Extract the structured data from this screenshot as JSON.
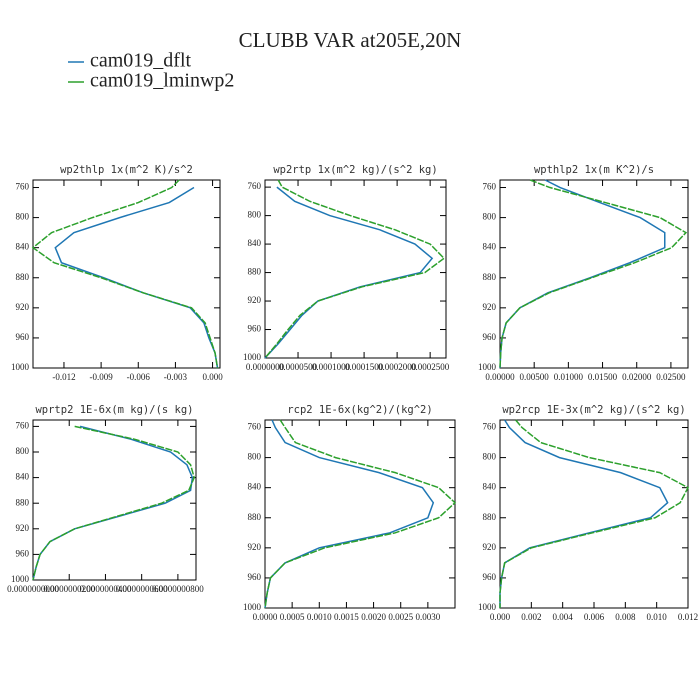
{
  "title": "CLUBB VAR at205E,20N",
  "legend": [
    {
      "name": "cam019_dflt",
      "color": "#1f77b4"
    },
    {
      "name": "cam019_lminwp2",
      "color": "#2ca02c"
    }
  ],
  "chart_data": [
    {
      "type": "line",
      "title": "wp2thlp  1x(m^2 K)/s^2",
      "y": [
        750,
        760,
        780,
        800,
        820,
        840,
        860,
        880,
        900,
        920,
        940,
        960,
        980,
        1000
      ],
      "ylim": [
        1000,
        750
      ],
      "yticks": [
        760,
        800,
        840,
        880,
        920,
        960,
        1000
      ],
      "xlim": [
        -0.0145,
        0.0006
      ],
      "xticks": [
        -0.012,
        -0.009,
        -0.006,
        -0.003,
        {
          "value": 0,
          "label": "0.000"
        }
      ],
      "series": [
        {
          "values": [
            null,
            -0.0015,
            -0.0035,
            -0.0075,
            -0.0112,
            -0.0127,
            -0.0122,
            -0.0088,
            -0.0056,
            -0.0018,
            -0.0007,
            -0.0003,
            0.0002,
            0.0004
          ]
        },
        {
          "values": [
            -0.0027,
            -0.0033,
            -0.006,
            -0.0097,
            -0.013,
            -0.0145,
            -0.0128,
            -0.009,
            -0.0056,
            -0.0017,
            -0.0006,
            -0.0002,
            0.0002,
            0.0004
          ]
        }
      ]
    },
    {
      "type": "line",
      "title": "wp2rtp  1x(m^2 kg)/(s^2 kg)",
      "y": [
        750,
        760,
        780,
        800,
        820,
        840,
        860,
        880,
        900,
        920,
        940,
        960,
        980,
        1000
      ],
      "ylim": [
        1000,
        750
      ],
      "yticks": [
        760,
        800,
        840,
        880,
        920,
        960,
        1000
      ],
      "xlim": [
        0,
        0.000274
      ],
      "xticks": [
        {
          "value": 0,
          "label": "0.0000000"
        },
        {
          "value": 5e-05,
          "label": "0.0000500"
        },
        {
          "value": 0.0001,
          "label": "0.0001000"
        },
        {
          "value": 0.00015,
          "label": "0.0001500"
        },
        {
          "value": 0.0002,
          "label": "0.0002000"
        },
        {
          "value": 0.00025,
          "label": "0.0002500"
        }
      ],
      "series": [
        {
          "values": [
            null,
            1.8e-05,
            4.5e-05,
            9.8e-05,
            0.000174,
            0.000227,
            0.000253,
            0.000235,
            0.000144,
            8e-05,
            5.6e-05,
            3.8e-05,
            2e-05,
            0
          ]
        },
        {
          "values": [
            2e-05,
            2.6e-05,
            6.8e-05,
            0.000129,
            0.000197,
            0.00025,
            0.000271,
            0.000242,
            0.000147,
            8e-05,
            5.3e-05,
            3.5e-05,
            1.8e-05,
            0
          ]
        }
      ]
    },
    {
      "type": "line",
      "title": "wpthlp2  1x(m K^2)/s",
      "y": [
        750,
        760,
        780,
        800,
        820,
        840,
        860,
        880,
        900,
        920,
        940,
        960,
        980,
        1000
      ],
      "ylim": [
        1000,
        750
      ],
      "yticks": [
        760,
        800,
        840,
        880,
        920,
        960,
        1000
      ],
      "xlim": [
        0,
        0.0275
      ],
      "xticks": [
        {
          "value": 0,
          "label": "0.00000"
        },
        {
          "value": 0.005,
          "label": "0.00500"
        },
        {
          "value": 0.01,
          "label": "0.01000"
        },
        {
          "value": 0.015,
          "label": "0.01500"
        },
        {
          "value": 0.02,
          "label": "0.02000"
        },
        {
          "value": 0.025,
          "label": "0.02500"
        }
      ],
      "series": [
        {
          "values": [
            0.0066,
            0.0088,
            0.0146,
            0.0205,
            0.0241,
            0.0241,
            0.019,
            0.0132,
            0.007,
            0.0029,
            0.0009,
            0.0003,
            0.0001,
            0
          ]
        },
        {
          "values": [
            0.0044,
            0.0073,
            0.0154,
            0.0234,
            0.0272,
            0.0251,
            0.0197,
            0.0134,
            0.0072,
            0.0029,
            0.0009,
            0.0003,
            0.0001,
            0
          ]
        }
      ]
    },
    {
      "type": "line",
      "title": "wprtp2  1E-6x(m kg)/(s kg)",
      "y": [
        750,
        760,
        780,
        800,
        820,
        840,
        860,
        880,
        900,
        920,
        940,
        960,
        980,
        1000
      ],
      "ylim": [
        1000,
        750
      ],
      "yticks": [
        760,
        800,
        840,
        880,
        920,
        960,
        1000
      ],
      "xlim": [
        0,
        9e-08
      ],
      "xticks": [
        {
          "value": 0,
          "label": "0.0000000000"
        },
        {
          "value": 2e-08,
          "label": "0.0000000200"
        },
        {
          "value": 4e-08,
          "label": "0.0000000400"
        },
        {
          "value": 6e-08,
          "label": "0.0000000600"
        },
        {
          "value": 8e-08,
          "label": "0.0000000800"
        }
      ],
      "series": [
        {
          "values": [
            null,
            2.6e-08,
            5.4e-08,
            7.6e-08,
            8.5e-08,
            8.8e-08,
            8.7e-08,
            7.3e-08,
            4.8e-08,
            2.3e-08,
            9.4e-09,
            3.9e-09,
            1.7e-09,
            0
          ]
        },
        {
          "values": [
            null,
            2.3e-08,
            5.6e-08,
            8e-08,
            8.7e-08,
            8.9e-08,
            8.6e-08,
            7.1e-08,
            4.7e-08,
            2.3e-08,
            9.4e-09,
            3.9e-09,
            1.7e-09,
            0
          ]
        }
      ]
    },
    {
      "type": "line",
      "title": "rcp2  1E-6x(kg^2)/(kg^2)",
      "y": [
        750,
        760,
        780,
        800,
        820,
        840,
        860,
        880,
        900,
        920,
        940,
        960,
        980,
        1000
      ],
      "ylim": [
        1000,
        750
      ],
      "yticks": [
        760,
        800,
        840,
        880,
        920,
        960,
        1000
      ],
      "xlim": [
        0,
        0.0035
      ],
      "xticks": [
        {
          "value": 0,
          "label": "0.0000"
        },
        0.0005,
        {
          "value": 0.001,
          "label": "0.0010"
        },
        0.0015,
        {
          "value": 0.002,
          "label": "0.0020"
        },
        0.0025,
        {
          "value": 0.003,
          "label": "0.0030"
        }
      ],
      "series": [
        {
          "values": [
            0.00013,
            0.00019,
            0.00037,
            0.001,
            0.0021,
            0.0029,
            0.0031,
            0.003,
            0.0023,
            0.001,
            0.00037,
            0.0001,
            4e-05,
            0
          ]
        },
        {
          "values": [
            0.00028,
            0.00037,
            0.00056,
            0.0013,
            0.0024,
            0.0032,
            0.0035,
            0.0032,
            0.0024,
            0.0011,
            0.00037,
            0.0001,
            4e-05,
            0
          ]
        }
      ]
    },
    {
      "type": "line",
      "title": "wp2rcp  1E-3x(m^2 kg)/(s^2 kg)",
      "y": [
        750,
        760,
        780,
        800,
        820,
        840,
        860,
        880,
        900,
        920,
        940,
        960,
        980,
        1000
      ],
      "ylim": [
        1000,
        750
      ],
      "yticks": [
        760,
        800,
        840,
        880,
        920,
        960,
        1000
      ],
      "xlim": [
        0,
        0.012
      ],
      "xticks": [
        {
          "value": 0,
          "label": "0.000"
        },
        0.002,
        0.004,
        0.006,
        0.008,
        {
          "value": 0.01,
          "label": "0.010"
        },
        0.012
      ],
      "series": [
        {
          "values": [
            0.0003,
            0.0006,
            0.0016,
            0.0038,
            0.0077,
            0.0102,
            0.0107,
            0.0096,
            0.0057,
            0.0019,
            0.0003,
            0.0001,
            0,
            0
          ]
        },
        {
          "values": [
            0.001,
            0.0014,
            0.0026,
            0.0057,
            0.0102,
            0.012,
            0.0115,
            0.0099,
            0.0059,
            0.002,
            0.0003,
            0.0001,
            0,
            0
          ]
        }
      ]
    }
  ]
}
